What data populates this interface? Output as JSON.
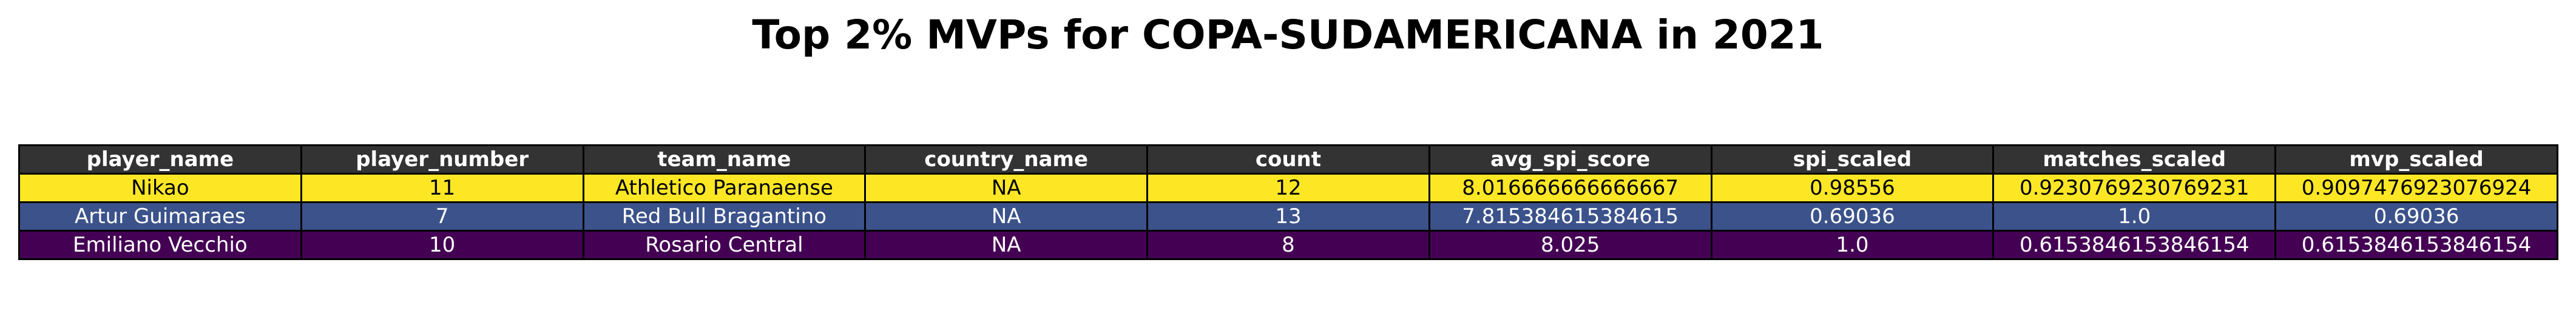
{
  "chart_data": {
    "type": "table",
    "title": "Top 2% MVPs for COPA-SUDAMERICANA in 2021",
    "columns": [
      "player_name",
      "player_number",
      "team_name",
      "country_name",
      "count",
      "avg_spi_score",
      "spi_scaled",
      "matches_scaled",
      "mvp_scaled"
    ],
    "rows": [
      {
        "cells": [
          "Nikao",
          "11",
          "Athletico Paranaense",
          "NA",
          "12",
          "8.016666666666667",
          "0.98556",
          "0.9230769230769231",
          "0.9097476923076924"
        ],
        "row_color": "#fde725",
        "text_color": "#000000"
      },
      {
        "cells": [
          "Artur Guimaraes",
          "7",
          "Red Bull Bragantino",
          "NA",
          "13",
          "7.815384615384615",
          "0.69036",
          "1.0",
          "0.69036"
        ],
        "row_color": "#3b528b",
        "text_color": "#ffffff"
      },
      {
        "cells": [
          "Emiliano Vecchio",
          "10",
          "Rosario Central",
          "NA",
          "8",
          "8.025",
          "1.0",
          "0.6153846153846154",
          "0.6153846153846154"
        ],
        "row_color": "#440154",
        "text_color": "#ffffff"
      }
    ],
    "header_color": "#333333",
    "header_text_color": "#ffffff"
  }
}
